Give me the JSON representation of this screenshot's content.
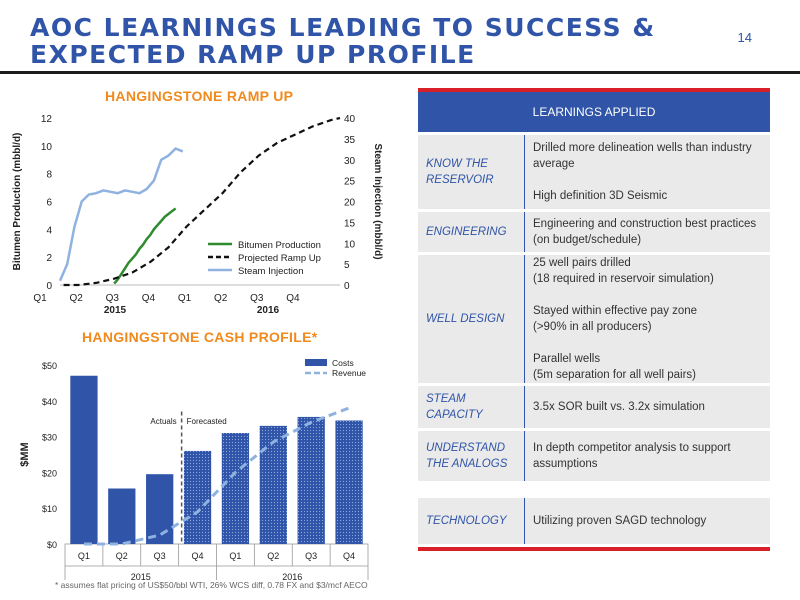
{
  "header": {
    "title_line1": "AOC LEARNINGS LEADING TO SUCCESS &",
    "title_line2": "EXPECTED RAMP UP PROFILE",
    "page_number": "14"
  },
  "ramp_chart": {
    "title": "HANGINGSTONE RAMP UP",
    "chart_data": {
      "type": "line",
      "ylabel_left": "Bitumen Production (mbbl/d)",
      "ylabel_right": "Steam Injection (mbbl/d)",
      "ylim_left": [
        0,
        12
      ],
      "ylim_right": [
        0,
        40
      ],
      "yticks_left": [
        "0",
        "2",
        "4",
        "6",
        "8",
        "10",
        "12"
      ],
      "yticks_right": [
        "0",
        "5",
        "10",
        "15",
        "20",
        "25",
        "30",
        "35",
        "40"
      ],
      "categories": [
        "Q1",
        "Q2",
        "Q3",
        "Q4",
        "Q1",
        "Q2",
        "Q3",
        "Q4"
      ],
      "year_labels": [
        "2015",
        "2016"
      ],
      "legend_position": "bottom-right",
      "series": [
        {
          "name": "Bitumen Production",
          "axis": "left",
          "color": "#2e8b2e",
          "style": "solid",
          "x": [
            1.5,
            1.6,
            1.7,
            1.8,
            1.9,
            2.0,
            2.1,
            2.2,
            2.3,
            2.4,
            2.5,
            2.6,
            2.7,
            2.8,
            2.9,
            3.0,
            3.1,
            3.2
          ],
          "y": [
            0.1,
            0.4,
            0.8,
            1.2,
            1.6,
            1.9,
            2.2,
            2.6,
            2.9,
            3.3,
            3.6,
            4.0,
            4.3,
            4.6,
            4.9,
            5.1,
            5.3,
            5.5
          ]
        },
        {
          "name": "Projected Ramp Up",
          "axis": "right",
          "color": "#111111",
          "style": "dashed",
          "x": [
            0.1,
            0.5,
            1.0,
            1.5,
            2.0,
            2.5,
            3.0,
            3.5,
            4.0,
            4.5,
            5.0,
            5.5,
            6.0,
            6.5,
            7.0,
            7.5,
            7.75
          ],
          "y": [
            0,
            0,
            0.5,
            1.5,
            3,
            5.5,
            9,
            14,
            18,
            22,
            27,
            31,
            34,
            36,
            38,
            39.5,
            40
          ]
        },
        {
          "name": "Steam Injection",
          "axis": "left",
          "color": "#8fb2e0",
          "style": "solid",
          "x": [
            0,
            0.2,
            0.4,
            0.6,
            0.8,
            1.0,
            1.2,
            1.4,
            1.6,
            1.8,
            2.0,
            2.2,
            2.4,
            2.6,
            2.8,
            3.0,
            3.2,
            3.4
          ],
          "y": [
            0.3,
            1.5,
            4.2,
            6.0,
            6.5,
            6.6,
            6.8,
            6.7,
            6.6,
            6.8,
            6.7,
            6.6,
            6.9,
            7.5,
            9.0,
            9.3,
            9.8,
            9.6
          ]
        }
      ]
    }
  },
  "cash_chart": {
    "title": "HANGINGSTONE CASH PROFILE*",
    "chart_data": {
      "type": "bar",
      "ylabel": "$MM",
      "ylim": [
        0,
        50
      ],
      "yticks": [
        "$0",
        "$10",
        "$20",
        "$30",
        "$40",
        "$50"
      ],
      "categories": [
        "Q1",
        "Q2",
        "Q3",
        "Q4",
        "Q1",
        "Q2",
        "Q3",
        "Q4"
      ],
      "year_labels": [
        "2015",
        "2016"
      ],
      "legend_position": "top-right",
      "annotations": [
        "Actuals",
        "Forecasted"
      ],
      "series": [
        {
          "name": "Costs",
          "values": [
            47,
            15.5,
            19.5,
            26,
            31,
            33,
            35.5,
            34.5
          ],
          "forecast_from_index": 3,
          "color": "#2f54a8"
        },
        {
          "name": "Revenue",
          "style": "dashed",
          "color": "#8fb2e0",
          "values": [
            0,
            0,
            2.5,
            9,
            20,
            28.5,
            34,
            38
          ]
        }
      ]
    }
  },
  "learnings": {
    "header": "LEARNINGS APPLIED",
    "rows": [
      {
        "key": "KNOW THE RESERVOIR",
        "lines": [
          "Drilled more delineation wells than industry average",
          "",
          "High definition 3D Seismic"
        ]
      },
      {
        "key": "ENGINEERING",
        "lines": [
          "Engineering and construction best practices (on budget/schedule)"
        ]
      },
      {
        "key": "WELL DESIGN",
        "lines": [
          "25 well pairs drilled",
          "(18 required in reservoir simulation)",
          "",
          "Stayed within effective pay zone",
          "(>90% in all producers)",
          "",
          "Parallel wells",
          "(5m separation for all well pairs)"
        ]
      },
      {
        "key": "STEAM CAPACITY",
        "lines": [
          "3.5x SOR built vs. 3.2x simulation"
        ]
      },
      {
        "key": "UNDERSTAND THE ANALOGS",
        "lines": [
          "In depth competitor analysis to support assumptions"
        ]
      },
      {
        "key": "TECHNOLOGY",
        "lines": [
          "Utilizing proven SAGD technology"
        ]
      }
    ]
  },
  "footnote": "* assumes flat pricing of US$50/bbl WTI, 26% WCS diff, 0.78 FX and $3/mcf AECO",
  "colors": {
    "accent": "#2f54a8",
    "orange": "#f08a1d",
    "red": "#d72027"
  }
}
